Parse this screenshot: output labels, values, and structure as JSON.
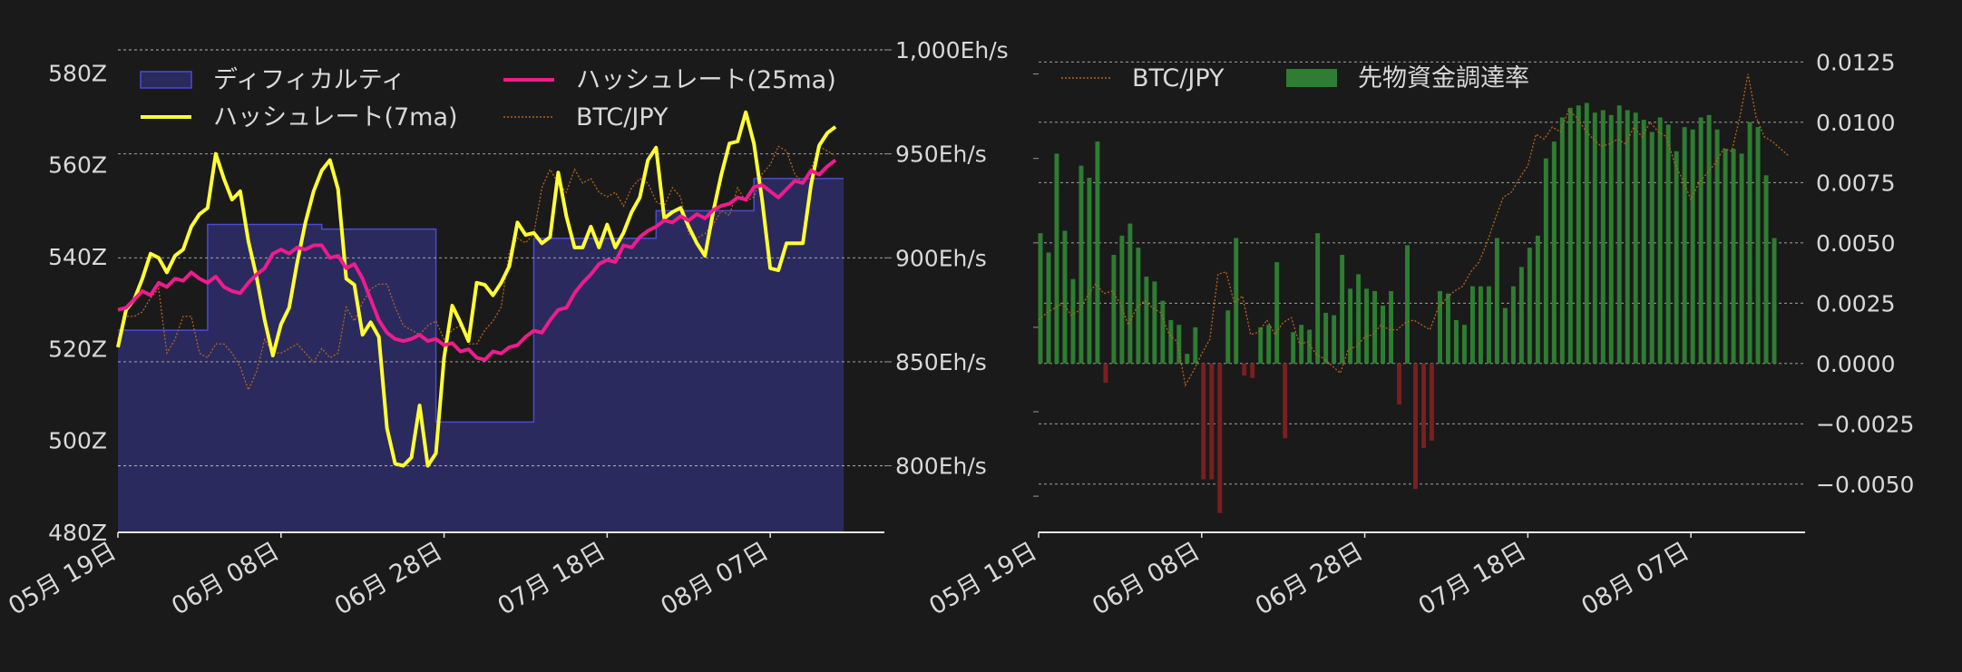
{
  "chart_data": [
    {
      "type": "line",
      "panel": "left",
      "title": "",
      "xlabel": "",
      "x_ticks": [
        "05月 19日",
        "06月 08日",
        "06月 28日",
        "07月 18日",
        "08月 07日"
      ],
      "x_range": [
        "05-11",
        "08-14"
      ],
      "y_left": {
        "label": "",
        "range": [
          480,
          585
        ],
        "ticks": [
          "480Z",
          "500Z",
          "520Z",
          "540Z",
          "560Z",
          "580Z"
        ]
      },
      "y_right": {
        "label": "",
        "range": [
          768,
          1000
        ],
        "ticks": [
          "800Eh/s",
          "850Eh/s",
          "900Eh/s",
          "950Eh/s",
          "1,000Eh/s"
        ]
      },
      "grid": true,
      "legend": [
        "ディフィカルティ",
        "ハッシュレート(25ma)",
        "ハッシュレート(7ma)",
        "BTC/JPY"
      ],
      "legend_placement": "top",
      "series": [
        {
          "name": "ディフィカルティ",
          "kind": "step-area",
          "axis": "left",
          "color": "#4b4bd6",
          "fill": "#2a2a5e",
          "points": [
            [
              0,
              524
            ],
            [
              11,
              524
            ],
            [
              11,
              547
            ],
            [
              25,
              547
            ],
            [
              25,
              546
            ],
            [
              39,
              546
            ],
            [
              39,
              504
            ],
            [
              51,
              504
            ],
            [
              51,
              544
            ],
            [
              66,
              544
            ],
            [
              66,
              550
            ],
            [
              78,
              550
            ],
            [
              78,
              557
            ],
            [
              89,
              557
            ]
          ]
        },
        {
          "name": "ハッシュレート(25ma)",
          "kind": "line",
          "axis": "right",
          "color": "#ee1c8c",
          "values": [
            875,
            876,
            880,
            884,
            882,
            888,
            886,
            890,
            889,
            893,
            890,
            888,
            891,
            886,
            884,
            883,
            888,
            892,
            895,
            902,
            904,
            902,
            905,
            904,
            906,
            906,
            900,
            901,
            895,
            897,
            890,
            880,
            870,
            864,
            861,
            860,
            861,
            863,
            860,
            861,
            858,
            859,
            855,
            856,
            852,
            851,
            855,
            854,
            857,
            858,
            862,
            865,
            864,
            870,
            875,
            876,
            883,
            888,
            892,
            897,
            899,
            898,
            906,
            905,
            910,
            913,
            915,
            918,
            917,
            920,
            918,
            921,
            919,
            923,
            925,
            926,
            929,
            928,
            934,
            935,
            932,
            929,
            933,
            937,
            936,
            942,
            940,
            944,
            947
          ]
        },
        {
          "name": "ハッシュレート(7ma)",
          "kind": "line",
          "axis": "right",
          "color": "#ffff33",
          "values": [
            857,
            875,
            880,
            890,
            902,
            900,
            893,
            901,
            904,
            915,
            921,
            924,
            950,
            938,
            928,
            932,
            908,
            891,
            870,
            853,
            868,
            876,
            898,
            917,
            932,
            942,
            947,
            933,
            890,
            887,
            863,
            869,
            862,
            818,
            801,
            800,
            804,
            829,
            800,
            806,
            852,
            877,
            869,
            860,
            888,
            887,
            882,
            888,
            896,
            917,
            911,
            912,
            907,
            910,
            941,
            920,
            905,
            905,
            915,
            905,
            916,
            905,
            912,
            922,
            929,
            947,
            953,
            919,
            922,
            924,
            915,
            907,
            901,
            922,
            940,
            955,
            956,
            970,
            955,
            928,
            895,
            894,
            907,
            907,
            907,
            935,
            954,
            960,
            963
          ]
        },
        {
          "name": "BTC/JPY",
          "kind": "dotted-line",
          "axis": "left",
          "color": "#b8651b",
          "values": [
            522,
            527,
            527,
            528,
            531,
            533,
            519,
            522,
            527,
            527,
            519,
            518,
            521,
            521,
            519,
            516,
            511,
            515,
            522,
            519,
            519,
            520,
            521,
            519,
            517,
            520,
            518,
            519,
            529,
            526,
            530,
            533,
            534,
            534,
            529,
            525,
            524,
            523,
            525,
            526,
            522,
            524,
            525,
            521,
            521,
            524,
            526,
            529,
            541,
            544,
            543,
            545,
            555,
            559,
            556,
            554,
            559,
            556,
            557,
            554,
            553,
            554,
            551,
            555,
            557,
            556,
            552,
            551,
            555,
            553,
            545,
            544,
            545,
            547,
            550,
            549,
            555,
            552,
            553,
            558,
            560,
            564,
            563,
            558,
            556,
            559,
            564,
            563,
            562
          ]
        }
      ]
    },
    {
      "type": "bar",
      "panel": "right",
      "title": "",
      "xlabel": "",
      "x_ticks": [
        "05月 19日",
        "06月 08日",
        "06月 28日",
        "07月 18日",
        "08月 07日"
      ],
      "x_range": [
        "05-11",
        "08-14"
      ],
      "y_right": {
        "label": "",
        "range": [
          -0.007,
          0.013
        ],
        "ticks": [
          "−0.0050",
          "−0.0025",
          "0.0000",
          "0.0025",
          "0.0050",
          "0.0075",
          "0.0100",
          "0.0125"
        ]
      },
      "grid": true,
      "legend": [
        "BTC/JPY",
        "先物資金調達率"
      ],
      "legend_placement": "top-left",
      "positive_color": "#2e7d32",
      "negative_color": "#7a1f1f",
      "series": [
        {
          "name": "先物資金調達率",
          "kind": "bar",
          "axis": "right",
          "values": [
            0.0054,
            0.0046,
            0.0087,
            0.0055,
            0.0035,
            0.0082,
            0.0077,
            0.0092,
            -0.0008,
            0.0045,
            0.0053,
            0.0058,
            0.0048,
            0.0036,
            0.0034,
            0.0026,
            0.0018,
            0.0016,
            0.0004,
            0.0015,
            -0.0048,
            -0.0048,
            -0.0062,
            0.0022,
            0.0052,
            -0.0005,
            -0.0006,
            0.0015,
            0.0016,
            0.0042,
            -0.0031,
            0.0013,
            0.0016,
            0.0014,
            0.0054,
            0.0021,
            0.002,
            0.0045,
            0.0031,
            0.0037,
            0.0031,
            0.003,
            0.0024,
            0.003,
            -0.0017,
            0.0049,
            -0.0052,
            -0.0035,
            -0.0032,
            0.003,
            0.0029,
            0.0018,
            0.0016,
            0.0032,
            0.0032,
            0.0032,
            0.0052,
            0.0023,
            0.0032,
            0.004,
            0.0048,
            0.0053,
            0.0085,
            0.0092,
            0.0102,
            0.0106,
            0.0107,
            0.0108,
            0.0104,
            0.0105,
            0.0103,
            0.0107,
            0.0105,
            0.0104,
            0.0101,
            0.0096,
            0.0102,
            0.0099,
            0.0088,
            0.0098,
            0.0097,
            0.0102,
            0.0103,
            0.0097,
            0.0089,
            0.0089,
            0.0087,
            0.01,
            0.0098,
            0.0078,
            0.0052
          ]
        },
        {
          "name": "BTC/JPY",
          "kind": "dotted-line",
          "axis": "right",
          "color": "#b8651b",
          "values": [
            0.0018,
            0.0021,
            0.0023,
            0.0025,
            0.002,
            0.0022,
            0.0028,
            0.0033,
            0.0029,
            0.003,
            0.0025,
            0.0016,
            0.0023,
            0.0026,
            0.0023,
            0.0021,
            0.0012,
            0.0009,
            -0.0009,
            -0.0003,
            0.0004,
            0.001,
            0.0037,
            0.0038,
            0.0025,
            0.0028,
            0.0012,
            0.0013,
            0.0018,
            0.0012,
            0.0017,
            0.0019,
            0.0008,
            0.0009,
            0.0004,
            0.0002,
            -0.0001,
            -0.0004,
            0.0006,
            0.0007,
            0.0011,
            0.0012,
            0.0016,
            0.0014,
            0.0014,
            0.0017,
            0.0018,
            0.0016,
            0.0014,
            0.0023,
            0.0027,
            0.003,
            0.0032,
            0.0038,
            0.0042,
            0.005,
            0.006,
            0.0069,
            0.0071,
            0.0077,
            0.0082,
            0.0095,
            0.0093,
            0.0098,
            0.0096,
            0.0105,
            0.0102,
            0.0097,
            0.0093,
            0.009,
            0.0091,
            0.0093,
            0.0091,
            0.0098,
            0.0094,
            0.01,
            0.0096,
            0.0094,
            0.0083,
            0.0076,
            0.0068,
            0.0075,
            0.0079,
            0.0083,
            0.0089,
            0.0088,
            0.0102,
            0.012,
            0.0102,
            0.0094,
            0.0092,
            0.0089,
            0.0086
          ]
        }
      ]
    }
  ]
}
